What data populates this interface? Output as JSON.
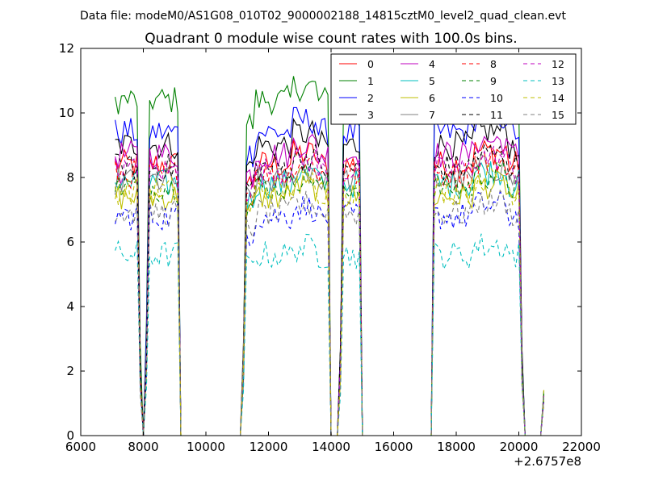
{
  "chart_data": {
    "type": "line",
    "suptitle": "Data file: modeM0/AS1G08_010T02_9000002188_14815cztM0_level2_quad_clean.evt",
    "title": "Quadrant 0 module wise count rates with 100.0s bins.",
    "xlabel": "",
    "ylabel": "",
    "x_offset_label": "+2.6757e8",
    "xlim": [
      6000,
      22000
    ],
    "ylim": [
      0,
      12
    ],
    "x_ticks": [
      6000,
      8000,
      10000,
      12000,
      14000,
      16000,
      18000,
      20000,
      22000
    ],
    "x_tick_labels": [
      "6000",
      "8000",
      "10000",
      "12000",
      "14000",
      "16000",
      "18000",
      "20000",
      "22000"
    ],
    "y_ticks": [
      0,
      2,
      4,
      6,
      8,
      10,
      12
    ],
    "y_tick_labels": [
      "0",
      "2",
      "4",
      "6",
      "8",
      "10",
      "12"
    ],
    "grid": false,
    "legend_position": "top-right",
    "legend_columns": 4,
    "series": [
      {
        "name": "0",
        "color": "#ff0000",
        "dash": "solid",
        "level": 8.4
      },
      {
        "name": "1",
        "color": "#008000",
        "dash": "solid",
        "level": 10.4
      },
      {
        "name": "2",
        "color": "#0000ff",
        "dash": "solid",
        "level": 9.4
      },
      {
        "name": "3",
        "color": "#000000",
        "dash": "solid",
        "level": 9.0
      },
      {
        "name": "4",
        "color": "#bf00bf",
        "dash": "solid",
        "level": 8.7
      },
      {
        "name": "5",
        "color": "#00bfbf",
        "dash": "solid",
        "level": 7.8
      },
      {
        "name": "6",
        "color": "#bfbf00",
        "dash": "solid",
        "level": 7.4
      },
      {
        "name": "7",
        "color": "#808080",
        "dash": "solid",
        "level": 7.9
      },
      {
        "name": "8",
        "color": "#ff0000",
        "dash": "dashed",
        "level": 8.1
      },
      {
        "name": "9",
        "color": "#008000",
        "dash": "dashed",
        "level": 7.7
      },
      {
        "name": "10",
        "color": "#0000ff",
        "dash": "dashed",
        "level": 6.8
      },
      {
        "name": "11",
        "color": "#000000",
        "dash": "dashed",
        "level": 8.3
      },
      {
        "name": "12",
        "color": "#bf00bf",
        "dash": "dashed",
        "level": 8.2
      },
      {
        "name": "13",
        "color": "#00bfbf",
        "dash": "dashed",
        "level": 5.6
      },
      {
        "name": "14",
        "color": "#bfbf00",
        "dash": "dashed",
        "level": 7.6
      },
      {
        "name": "15",
        "color": "#808080",
        "dash": "dashed",
        "level": 6.9
      }
    ],
    "active_intervals": [
      [
        7100,
        7800
      ],
      [
        8200,
        9150
      ],
      [
        11300,
        13950
      ],
      [
        14400,
        14950
      ],
      [
        17250,
        20000
      ]
    ],
    "x_step": 100,
    "end_point": {
      "x": 20800,
      "y": 1.25
    }
  }
}
